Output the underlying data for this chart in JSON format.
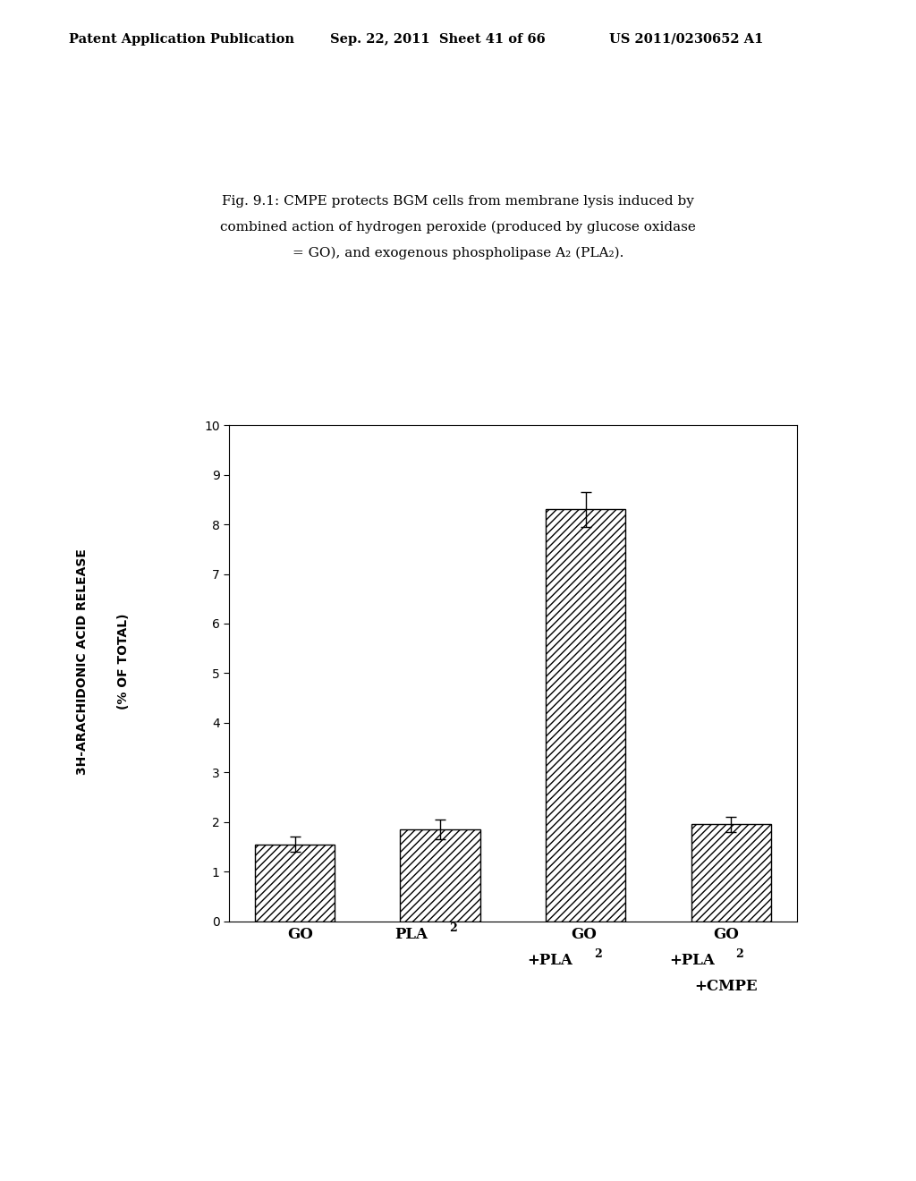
{
  "title_line1": "Fig. 9.1: CMPE protects BGM cells from membrane lysis induced by",
  "title_line2": "combined action of hydrogen peroxide (produced by glucose oxidase",
  "title_line3": "= GO), and exogenous phospholipase A₂ (PLA₂).",
  "header_left": "Patent Application Publication",
  "header_mid": "Sep. 22, 2011  Sheet 41 of 66",
  "header_right": "US 2011/0230652 A1",
  "values": [
    1.55,
    1.85,
    8.3,
    1.95
  ],
  "errors": [
    0.15,
    0.2,
    0.35,
    0.15
  ],
  "ylabel_line1": "3H-ARACHIDONIC ACID RELEASE",
  "ylabel_line2": "(% OF TOTAL)",
  "ylim": [
    0,
    10
  ],
  "yticks": [
    0,
    1,
    2,
    3,
    4,
    5,
    6,
    7,
    8,
    9,
    10
  ],
  "bar_color": "white",
  "bar_edgecolor": "#000000",
  "hatch_pattern": "////",
  "background_color": "#ffffff",
  "figure_background": "#ffffff"
}
